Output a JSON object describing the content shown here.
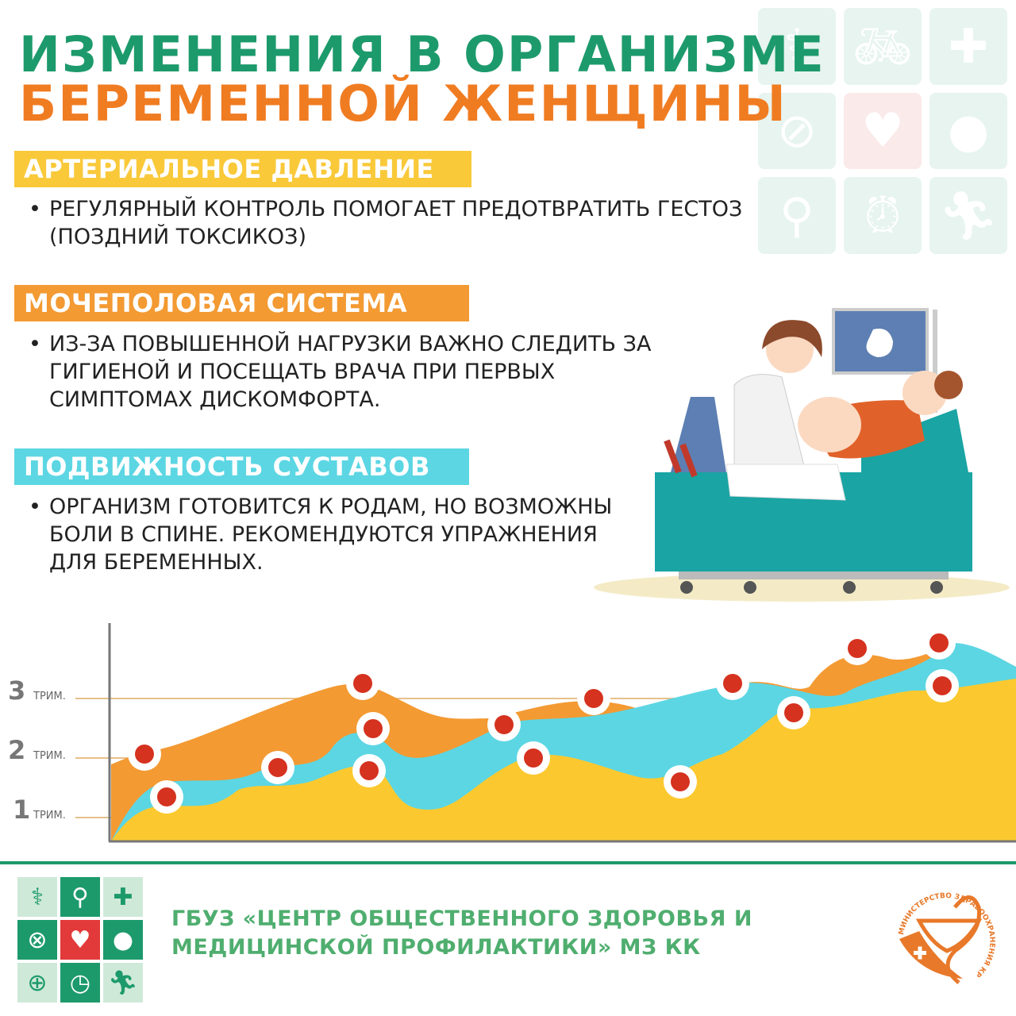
{
  "title": {
    "line1": "ИЗМЕНЕНИЯ В ОРГАНИЗМЕ",
    "line2": "БЕРЕМЕННОЙ ЖЕНЩИНЫ"
  },
  "sections": [
    {
      "heading": "АРТЕРИАЛЬНОЕ ДАВЛЕНИЕ",
      "color": "#f9c93a",
      "bullet": "•",
      "text": "РЕГУЛЯРНЫЙ КОНТРОЛЬ ПОМОГАЕТ ПРЕДОТВРАТИТЬ ГЕСТОЗ (ПОЗДНИЙ ТОКСИКОЗ)"
    },
    {
      "heading": "МОЧЕПОЛОВАЯ СИСТЕМА",
      "color": "#f39a33",
      "bullet": "•",
      "text": "ИЗ-ЗА ПОВЫШЕННОЙ НАГРУЗКИ ВАЖНО СЛЕДИТЬ ЗА ГИГИЕНОЙ И ПОСЕЩАТЬ ВРАЧА ПРИ ПЕРВЫХ СИМПТОМАХ ДИСКОМФОРТА."
    },
    {
      "heading": "ПОДВИЖНОСТЬ СУСТАВОВ",
      "color": "#5cd6e3",
      "bullet": "•",
      "text": "ОРГАНИЗМ ГОТОВИТСЯ К РОДАМ, НО ВОЗМОЖНЫ БОЛИ В СПИНЕ. РЕКОМЕНДУЮТСЯ УПРАЖНЕНИЯ ДЛЯ БЕРЕМЕННЫХ."
    }
  ],
  "chart": {
    "ticks": [
      {
        "num": "3",
        "label": "ТРИМ."
      },
      {
        "num": "2",
        "label": "ТРИМ."
      },
      {
        "num": "1",
        "label": "ТРИМ."
      }
    ],
    "colors": {
      "orange": "#f39a33",
      "cyan": "#5cd6e3",
      "yellow": "#fbc92f",
      "dot": "#d5321f"
    }
  },
  "footer": {
    "org_line1": "ГБУЗ «ЦЕНТР ОБЩЕСТВЕННОГО ЗДОРОВЬЯ И",
    "org_line2": "МЕДИЦИНСКОЙ ПРОФИЛАКТИКИ» МЗ КК",
    "logo_text": "МИНИСТЕРСТВО ЗДРАВООХРАНЕНИЯ КРАСНОДАРСКОГО КРАЯ",
    "icons": [
      "caduceus-icon",
      "bicycle-icon",
      "plus-icon",
      "no-smoking-icon",
      "heart-pulse-icon",
      "apple-icon",
      "magnifier-icon",
      "alarm-clock-icon",
      "runner-icon"
    ]
  }
}
